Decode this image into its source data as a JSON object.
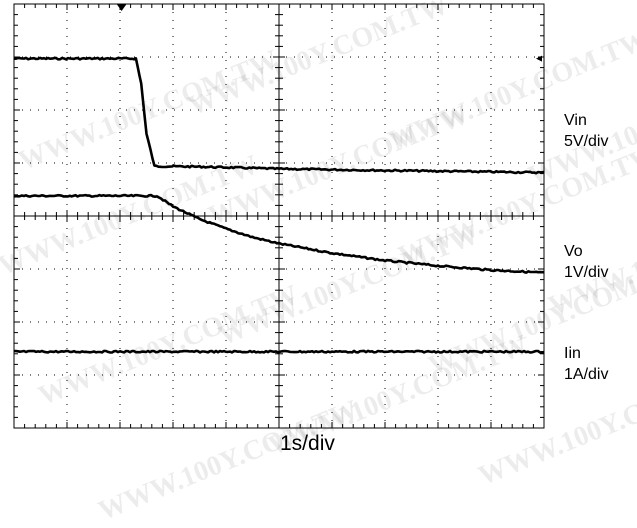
{
  "chart_data": {
    "type": "line",
    "title": "",
    "xlabel": "1s/div",
    "grid": true,
    "x_divisions": 10,
    "y_divisions": 8,
    "trigger_marker": "down-triangle",
    "channel_marker": "left-arrow",
    "x_unit": "div",
    "y_unit": "div",
    "series": [
      {
        "name": "Vin",
        "scale": "5V/div",
        "color": "#000000",
        "points": [
          [
            0,
            6.97
          ],
          [
            2.3,
            6.97
          ],
          [
            2.4,
            6.5
          ],
          [
            2.5,
            5.55
          ],
          [
            2.65,
            4.94
          ],
          [
            3.5,
            4.93
          ],
          [
            5,
            4.89
          ],
          [
            7,
            4.86
          ],
          [
            8.5,
            4.84
          ],
          [
            10,
            4.82
          ]
        ]
      },
      {
        "name": "Vo",
        "scale": "1V/div",
        "color": "#000000",
        "points": [
          [
            0,
            4.38
          ],
          [
            2.7,
            4.38
          ],
          [
            3.0,
            4.18
          ],
          [
            3.5,
            3.94
          ],
          [
            4.0,
            3.76
          ],
          [
            4.5,
            3.6
          ],
          [
            5,
            3.48
          ],
          [
            6,
            3.3
          ],
          [
            7,
            3.16
          ],
          [
            8,
            3.06
          ],
          [
            9,
            2.98
          ],
          [
            10,
            2.93
          ]
        ]
      },
      {
        "name": "Iin",
        "scale": "1A/div",
        "color": "#000000",
        "points": [
          [
            0,
            1.44
          ],
          [
            10,
            1.44
          ]
        ]
      }
    ]
  },
  "labels": {
    "vin_name": "Vin",
    "vin_scale": "5V/div",
    "vo_name": "Vo",
    "vo_scale": "1V/div",
    "iin_name": "Iin",
    "iin_scale": "1A/div",
    "timebase": "1s/div"
  },
  "watermark": "WWW.100Y.COM.TW"
}
